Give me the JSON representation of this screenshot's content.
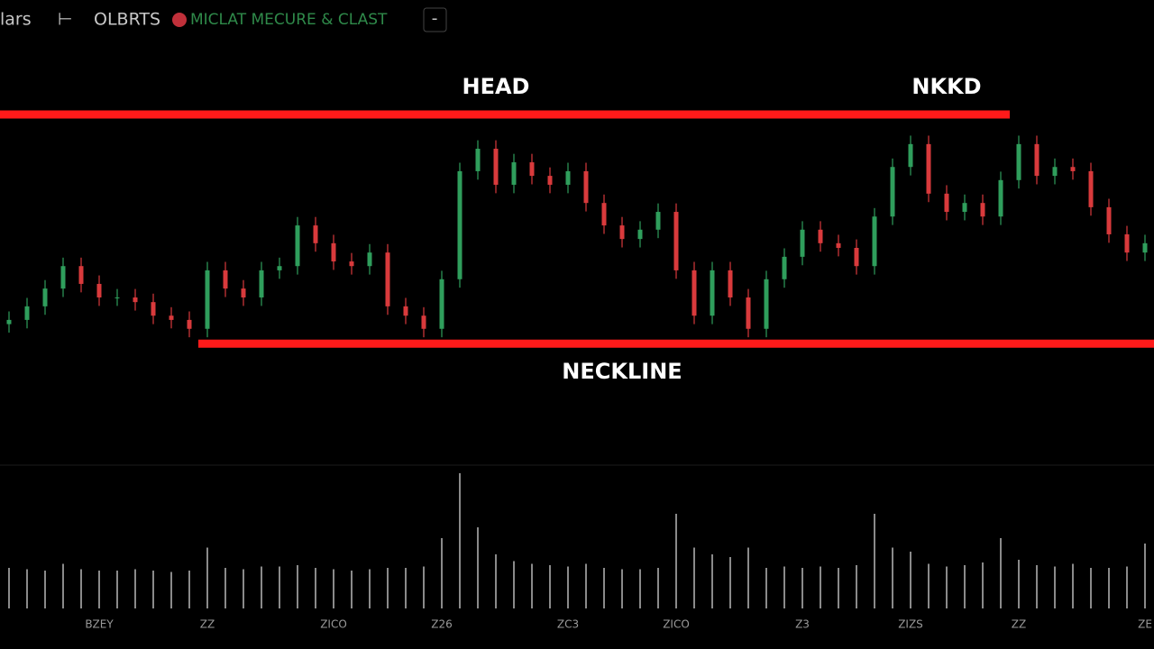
{
  "toolbar": [
    "lars",
    "⊢",
    "OLBRTS",
    "MICLAT MECURE & CLAST",
    "-"
  ],
  "chart_data": {
    "type": "candlestick",
    "categories": [
      null,
      null,
      null,
      null,
      null,
      "BZEY",
      null,
      null,
      null,
      null,
      null,
      "ZZ",
      null,
      null,
      null,
      null,
      null,
      null,
      "ZICO",
      null,
      null,
      null,
      null,
      null,
      "Z26",
      null,
      null,
      null,
      null,
      null,
      null,
      "ZC3",
      null,
      null,
      null,
      null,
      null,
      "ZICO",
      null,
      null,
      null,
      null,
      null,
      null,
      "Z3",
      null,
      null,
      null,
      null,
      null,
      "ZIZS",
      null,
      null,
      null,
      null,
      null,
      "ZZ",
      null,
      null,
      null,
      null,
      null,
      null,
      "ZE"
    ],
    "open": [
      32.0,
      33.0,
      36.2,
      40.4,
      45.7,
      41.5,
      38.3,
      38.3,
      37.2,
      34.0,
      33.0,
      30.9,
      44.7,
      40.4,
      38.3,
      44.7,
      45.7,
      55.3,
      51.1,
      46.8,
      45.7,
      48.9,
      36.2,
      34.0,
      30.9,
      42.6,
      68.1,
      73.4,
      64.9,
      70.2,
      67.0,
      64.9,
      68.1,
      60.6,
      55.3,
      52.1,
      54.3,
      58.5,
      44.7,
      34.0,
      44.7,
      38.3,
      30.9,
      42.6,
      47.9,
      54.3,
      51.1,
      50.0,
      45.7,
      57.4,
      69.1,
      74.5,
      62.8,
      58.5,
      60.6,
      57.4,
      66.0,
      74.5,
      67.0,
      69.1,
      68.1,
      59.6,
      53.2,
      48.9
    ],
    "high": [
      35.0,
      38.2,
      42.4,
      47.7,
      47.7,
      43.5,
      40.3,
      40.3,
      39.2,
      36.0,
      35.0,
      46.7,
      46.7,
      42.4,
      46.7,
      47.7,
      57.3,
      57.3,
      53.1,
      48.8,
      50.9,
      50.9,
      38.2,
      36.0,
      44.6,
      70.1,
      75.4,
      75.4,
      72.2,
      72.2,
      69.0,
      70.1,
      70.1,
      62.6,
      57.3,
      56.3,
      60.5,
      60.5,
      46.7,
      46.7,
      46.7,
      40.3,
      44.6,
      49.9,
      56.3,
      56.3,
      53.1,
      52.0,
      59.4,
      71.1,
      76.5,
      76.5,
      64.8,
      62.6,
      62.6,
      68.0,
      76.5,
      76.5,
      71.1,
      71.1,
      70.1,
      61.6,
      55.2,
      53.1
    ],
    "low": [
      30.0,
      31.0,
      34.2,
      38.4,
      39.5,
      36.3,
      36.3,
      35.2,
      32.0,
      31.0,
      28.9,
      28.9,
      38.4,
      36.3,
      36.3,
      42.7,
      43.7,
      49.1,
      44.8,
      43.7,
      43.7,
      34.2,
      32.0,
      28.9,
      28.9,
      40.6,
      66.1,
      62.9,
      62.9,
      65.0,
      62.9,
      62.9,
      58.6,
      53.3,
      50.1,
      50.1,
      52.3,
      42.7,
      32.0,
      32.0,
      36.3,
      28.9,
      28.9,
      40.6,
      45.9,
      49.1,
      48.0,
      43.7,
      43.7,
      55.4,
      67.1,
      60.8,
      56.5,
      56.5,
      55.4,
      55.4,
      64.0,
      65.0,
      65.0,
      66.1,
      57.6,
      51.2,
      46.9,
      46.9
    ],
    "close": [
      33.0,
      36.2,
      40.4,
      45.7,
      41.5,
      38.3,
      38.3,
      37.2,
      34.0,
      33.0,
      30.9,
      44.7,
      40.4,
      38.3,
      44.7,
      45.7,
      55.3,
      51.1,
      46.8,
      45.7,
      48.9,
      36.2,
      34.0,
      30.9,
      42.6,
      68.1,
      73.4,
      64.9,
      70.2,
      67.0,
      64.9,
      68.1,
      60.6,
      55.3,
      52.1,
      54.3,
      58.5,
      44.7,
      34.0,
      44.7,
      38.3,
      30.9,
      42.6,
      47.9,
      54.3,
      51.1,
      50.0,
      45.7,
      57.4,
      69.1,
      74.5,
      62.8,
      58.5,
      60.6,
      57.4,
      66.0,
      74.5,
      67.0,
      69.1,
      68.1,
      59.6,
      53.2,
      48.9,
      51.1
    ],
    "up_color": "#2f9e5c",
    "down_color": "#d93a3c",
    "ylim": [
      0,
      100
    ],
    "volume": {
      "color": "#8a8a8a",
      "ylim": [
        0,
        100
      ],
      "values": [
        30,
        29,
        28,
        33,
        29,
        28,
        28,
        29,
        28,
        27,
        28,
        45,
        30,
        29,
        31,
        31,
        32,
        30,
        29,
        28,
        29,
        30,
        30,
        31,
        52,
        100,
        60,
        40,
        35,
        33,
        32,
        31,
        33,
        30,
        29,
        29,
        30,
        70,
        45,
        40,
        38,
        45,
        30,
        31,
        30,
        31,
        30,
        32,
        70,
        45,
        42,
        33,
        31,
        32,
        34,
        52,
        36,
        32,
        31,
        33,
        30,
        30,
        31,
        48
      ]
    },
    "levels": [
      {
        "value": 81.5,
        "from": 0,
        "to": 55,
        "color": "#ff1a1a"
      },
      {
        "value": 27.4,
        "from": 11,
        "to": 63,
        "color": "#ff1a1a"
      }
    ],
    "annotations": [
      {
        "text": "HEAD",
        "at": 27,
        "level": 0
      },
      {
        "text": "NKKD",
        "at": 52,
        "level": 0
      },
      {
        "text": "NECKLINE",
        "at": 34,
        "level": 1
      }
    ]
  }
}
